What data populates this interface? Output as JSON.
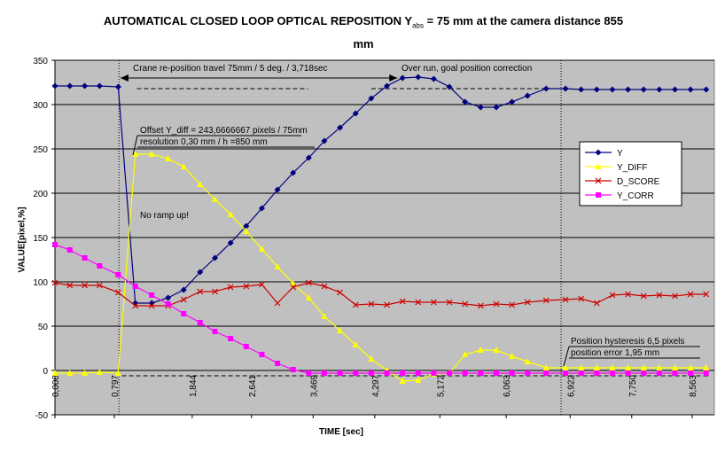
{
  "title_line1": "AUTOMATICAL CLOSED LOOP OPTICAL REPOSITION  Y",
  "title_sub": "abs",
  "title_rest": " = 75 mm at the camera distance 855",
  "title_line2": "mm",
  "chart_data": {
    "type": "line",
    "xlabel": "TIME [sec]",
    "ylabel": "VALUE[pixel,%]",
    "ylim": [
      -50,
      350
    ],
    "xlim": [
      0,
      8.86
    ],
    "grid": "horizontal",
    "legend_position": "right",
    "yticks": [
      "-50",
      "0",
      "50",
      "100",
      "150",
      "200",
      "250",
      "300",
      "350"
    ],
    "xticks": [
      "0,000",
      "0,797",
      "1,844",
      "2,641",
      "3,469",
      "4,297",
      "5,172",
      "6,063",
      "6,922",
      "7,750",
      "8,563"
    ],
    "x": [
      0.0,
      0.2,
      0.4,
      0.6,
      0.85,
      1.08,
      1.3,
      1.52,
      1.73,
      1.95,
      2.15,
      2.36,
      2.57,
      2.78,
      2.99,
      3.2,
      3.41,
      3.62,
      3.83,
      4.04,
      4.25,
      4.46,
      4.67,
      4.88,
      5.09,
      5.3,
      5.51,
      5.72,
      5.93,
      6.14,
      6.35,
      6.6,
      6.86,
      7.07,
      7.28,
      7.49,
      7.7,
      7.91,
      8.12,
      8.33,
      8.54,
      8.75
    ],
    "series": [
      {
        "name": "Y",
        "color": "#000080",
        "marker": "diamond",
        "values": [
          321,
          321,
          321,
          321,
          320,
          76,
          76,
          82,
          91,
          111,
          127,
          144,
          163,
          183,
          204,
          223,
          240,
          259,
          274,
          290,
          307,
          321,
          330,
          331,
          329,
          320,
          303,
          297,
          297,
          303,
          310,
          318,
          318,
          317,
          317,
          317,
          317,
          317,
          317,
          317,
          317,
          317
        ]
      },
      {
        "name": "Y_DIFF",
        "color": "#ffff00",
        "marker": "triangle",
        "values": [
          -3,
          -3,
          -3,
          -2,
          -3,
          244,
          244,
          239,
          230,
          210,
          193,
          176,
          157,
          137,
          117,
          98,
          82,
          61,
          45,
          29,
          13,
          0,
          -12,
          -11,
          -4,
          -3,
          18,
          23,
          23,
          16,
          10,
          3,
          3,
          3,
          3,
          3,
          3,
          3,
          3,
          3,
          3,
          3
        ]
      },
      {
        "name": "D_SCORE",
        "color": "#cc0000",
        "marker": "x",
        "values": [
          99,
          96,
          96,
          96,
          88,
          73,
          73,
          73,
          80,
          89,
          89,
          94,
          95,
          97,
          76,
          94,
          99,
          95,
          88,
          74,
          75,
          74,
          78,
          77,
          77,
          77,
          75,
          73,
          75,
          74,
          77,
          79,
          80,
          81,
          76,
          85,
          86,
          84,
          85,
          84,
          86,
          86
        ]
      },
      {
        "name": "Y_CORR",
        "color": "#ff00ff",
        "marker": "square",
        "values": [
          142,
          136,
          127,
          118,
          108,
          95,
          85,
          75,
          64,
          54,
          44,
          36,
          27,
          18,
          8,
          1,
          -3,
          -3,
          -3,
          -3,
          -3,
          -3,
          -3,
          -3,
          -3,
          -3,
          -3,
          -3,
          -3,
          -3,
          -3,
          -3,
          -3,
          -3,
          -3,
          -3,
          -3,
          -3,
          -3,
          -3,
          -3,
          -3
        ]
      }
    ],
    "annotations": {
      "crane": "Crane re-position travel 75mm / 5 deg. / 3,718sec",
      "overrun": "Over run, goal position correction",
      "offset_line1": "Offset Y_diff = 243,6666667 pixels / 75mm",
      "offset_line2": "resolution 0,30 mm / h =850 mm",
      "noramp": "No ramp up!",
      "hyst_line1": "Position hysteresis 6,5 pixels",
      "hyst_line2": "position error 1,95 mm"
    }
  }
}
